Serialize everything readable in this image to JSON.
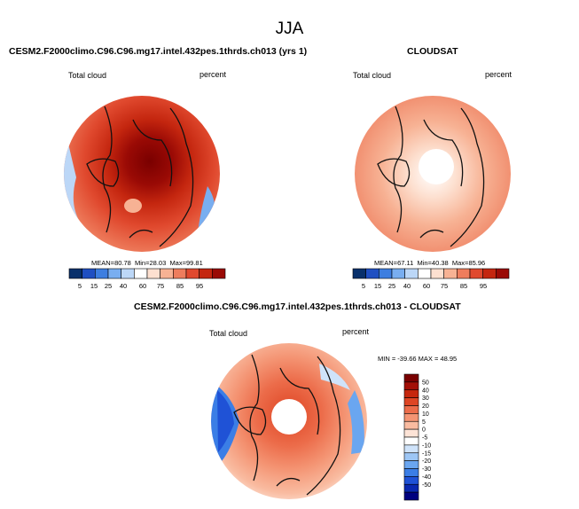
{
  "figure_title": "JJA",
  "colors": {
    "abs_scale": [
      "#08306b",
      "#1f4fc2",
      "#3d7ee0",
      "#79aef0",
      "#bcd7f7",
      "#ffffff",
      "#fde0d0",
      "#f7b294",
      "#ee7d5d",
      "#e0492e",
      "#c4260f",
      "#9a0a05",
      "#6b0000"
    ],
    "diff_scale": [
      "#00007f",
      "#0a28b0",
      "#1f52d6",
      "#3b7ee6",
      "#6aa6f0",
      "#9dc6f5",
      "#cfe3fa",
      "#ffffff",
      "#fde3d6",
      "#f9bba0",
      "#f49473",
      "#ec6c4a",
      "#de4524",
      "#c6270e",
      "#a30f06",
      "#7a0000"
    ],
    "coast": "#111111"
  },
  "panels": [
    {
      "title": "CESM2.F2000climo.C96.C96.mg17.intel.432pes.1thrds.ch013 (yrs 1)",
      "variable": "Total cloud",
      "units": "percent",
      "stats": {
        "mean_label": "MEAN=",
        "mean": "80.78",
        "min_label": "Min=",
        "min": "28.03",
        "max_label": "Max=",
        "max": "99.81"
      }
    },
    {
      "title": "CLOUDSAT",
      "variable": "Total cloud",
      "units": "percent",
      "stats": {
        "mean_label": "MEAN=",
        "mean": "67.11",
        "min_label": "Min=",
        "min": "40.38",
        "max_label": "Max=",
        "max": "85.96"
      }
    },
    {
      "title": "CESM2.F2000climo.C96.C96.mg17.intel.432pes.1thrds.ch013 - CLOUDSAT",
      "variable": "Total cloud",
      "units": "percent",
      "minmax_text": "MIN = -39.66 MAX =  48.95"
    }
  ],
  "chart_data": [
    {
      "type": "heatmap",
      "projection": "polar stereographic (north)",
      "title": "CESM2.F2000climo.C96.C96.mg17.intel.432pes.1thrds.ch013 (yrs 1)",
      "variable": "Total cloud",
      "units": "percent",
      "mean": 80.78,
      "min": 28.03,
      "max": 99.81,
      "colorbar_levels": [
        5,
        15,
        25,
        40,
        60,
        75,
        85,
        95
      ],
      "colorbar_labels": [
        "5",
        "15",
        "25",
        "40",
        "60",
        "75",
        "85",
        "95"
      ]
    },
    {
      "type": "heatmap",
      "projection": "polar stereographic (north)",
      "title": "CLOUDSAT",
      "variable": "Total cloud",
      "units": "percent",
      "mean": 67.11,
      "min": 40.38,
      "max": 85.96,
      "colorbar_levels": [
        5,
        15,
        25,
        40,
        60,
        75,
        85,
        95
      ],
      "colorbar_labels": [
        "5",
        "15",
        "25",
        "40",
        "60",
        "75",
        "85",
        "95"
      ]
    },
    {
      "type": "heatmap",
      "projection": "polar stereographic (north)",
      "title": "CESM2.F2000climo.C96.C96.mg17.intel.432pes.1thrds.ch013 - CLOUDSAT",
      "variable": "Total cloud",
      "units": "percent",
      "min": -39.66,
      "max": 48.95,
      "colorbar_levels": [
        50,
        40,
        30,
        20,
        10,
        5,
        0,
        -5,
        -10,
        -15,
        -20,
        -30,
        -40,
        -50
      ],
      "colorbar_labels": [
        "50",
        "40",
        "30",
        "20",
        "10",
        "5",
        "0",
        "-5",
        "-10",
        "-15",
        "-20",
        "-30",
        "-40",
        "-50"
      ]
    }
  ]
}
